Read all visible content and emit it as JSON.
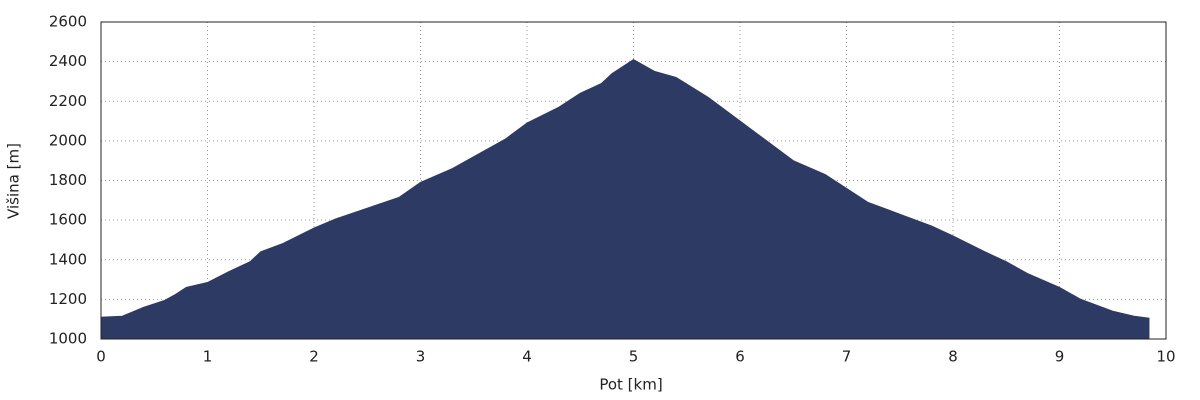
{
  "chart_data": {
    "type": "area",
    "xlabel": "Pot [km]",
    "ylabel": "Višina [m]",
    "x": [
      0,
      0.2,
      0.4,
      0.6,
      0.7,
      0.8,
      1.0,
      1.2,
      1.4,
      1.5,
      1.7,
      2.0,
      2.2,
      2.5,
      2.8,
      3.0,
      3.3,
      3.5,
      3.8,
      4.0,
      4.3,
      4.5,
      4.7,
      4.8,
      5.0,
      5.2,
      5.4,
      5.7,
      6.0,
      6.3,
      6.5,
      6.8,
      7.0,
      7.2,
      7.5,
      7.8,
      8.0,
      8.3,
      8.5,
      8.7,
      9.0,
      9.2,
      9.5,
      9.7,
      9.84
    ],
    "values": [
      1110,
      1115,
      1160,
      1195,
      1225,
      1260,
      1285,
      1340,
      1390,
      1440,
      1480,
      1560,
      1605,
      1660,
      1715,
      1790,
      1860,
      1920,
      2010,
      2090,
      2170,
      2240,
      2290,
      2340,
      2410,
      2350,
      2320,
      2220,
      2100,
      1980,
      1900,
      1830,
      1760,
      1690,
      1630,
      1570,
      1520,
      1440,
      1390,
      1330,
      1260,
      1200,
      1140,
      1115,
      1105
    ],
    "color": "#2d3a64",
    "xlim": [
      0,
      10
    ],
    "xticks": [
      0,
      1,
      2,
      3,
      4,
      5,
      6,
      7,
      8,
      9,
      10
    ],
    "ylim": [
      1000,
      2600
    ],
    "yticks": [
      1000,
      1200,
      1400,
      1600,
      1800,
      2000,
      2200,
      2400,
      2600
    ],
    "grid": true
  }
}
